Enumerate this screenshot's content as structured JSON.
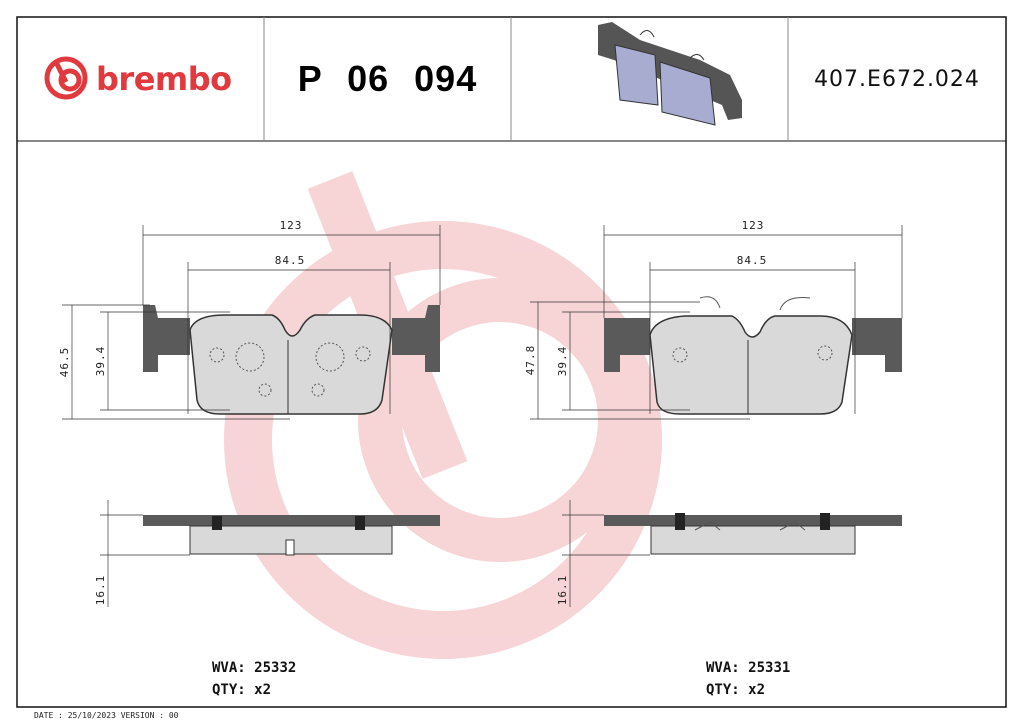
{
  "header": {
    "brand": "brembo",
    "part_number": "P 06 094",
    "reference_code": "407.E672.024"
  },
  "colors": {
    "brand": "#e03a3e",
    "watermark": "#f6cdd0",
    "backplate": "#5a5a5a",
    "friction": "#d9d9d9"
  },
  "left_pad": {
    "width_dim": "123",
    "inner_width_dim": "84.5",
    "height_dim": "46.5",
    "inner_height_dim": "39.4",
    "thickness_dim": "16.1",
    "wva_label": "WVA:",
    "wva": "25332",
    "qty_label": "QTY:",
    "qty": "x2"
  },
  "right_pad": {
    "width_dim": "123",
    "inner_width_dim": "84.5",
    "height_dim": "47.8",
    "inner_height_dim": "39.4",
    "thickness_dim": "16.1",
    "wva_label": "WVA:",
    "wva": "25331",
    "qty_label": "QTY:",
    "qty": "x2"
  },
  "footer": {
    "text": "DATE : 25/10/2023 VERSION : 00"
  }
}
